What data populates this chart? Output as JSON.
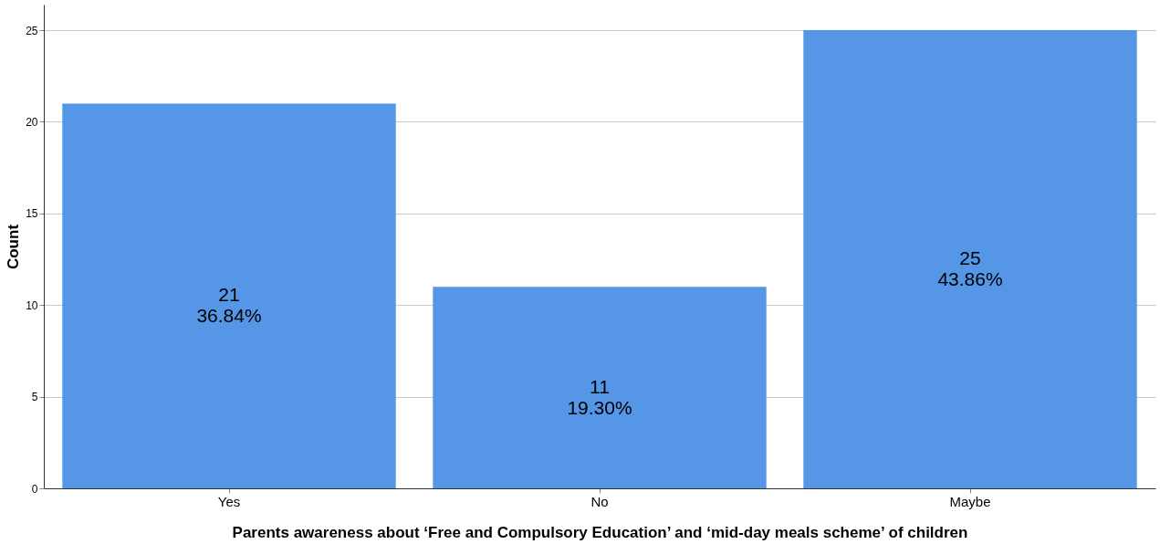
{
  "chart_data": {
    "type": "bar",
    "xlabel": "Parents awareness about ‘Free and Compulsory Education’ and ‘mid-day meals scheme’ of children",
    "ylabel": "Count",
    "categories": [
      "Yes",
      "No",
      "Maybe"
    ],
    "values": [
      21,
      11,
      25
    ],
    "value_labels": [
      "21\n36.84%",
      "11\n19.30%",
      "25\n43.86%"
    ],
    "color": "#5596e6",
    "ylim": [
      0,
      26.4
    ],
    "yticks": [
      0,
      5,
      10,
      15,
      20,
      25
    ],
    "grid": "y"
  }
}
